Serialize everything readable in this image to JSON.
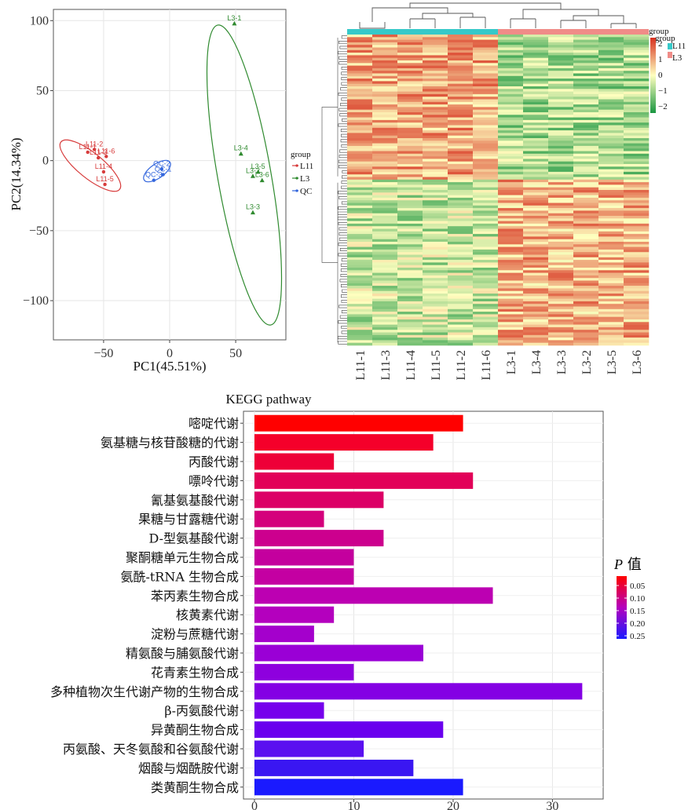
{
  "chart_data": [
    {
      "type": "scatter",
      "xlabel": "PC1(45.51%)",
      "ylabel": "PC2(14.34%)",
      "xlim": [
        -88,
        88
      ],
      "ylim": [
        -128,
        108
      ],
      "xticks": [
        -50,
        0,
        50
      ],
      "yticks": [
        100,
        50,
        0,
        -50,
        -100
      ],
      "grid": true,
      "legend": {
        "title": "group",
        "placement": "right",
        "entries": [
          "L11",
          "L3",
          "QC"
        ]
      },
      "colors": {
        "L11": "#d73b3b",
        "L3": "#2f8a2f",
        "QC": "#3366dd"
      },
      "series": [
        {
          "name": "L11",
          "points": [
            {
              "label": "L11-1",
              "x": -62,
              "y": 6
            },
            {
              "label": "L11-2",
              "x": -57,
              "y": 8
            },
            {
              "label": "L11-3",
              "x": -54,
              "y": 2
            },
            {
              "label": "L11-6",
              "x": -48,
              "y": 3
            },
            {
              "label": "L11-4",
              "x": -50,
              "y": -8
            },
            {
              "label": "L11-5",
              "x": -49,
              "y": -17
            }
          ]
        },
        {
          "name": "L3",
          "points": [
            {
              "label": "L3-1",
              "x": 49,
              "y": 98
            },
            {
              "label": "L3-4",
              "x": 54,
              "y": 5
            },
            {
              "label": "L3-5",
              "x": 67,
              "y": -8
            },
            {
              "label": "L3-2",
              "x": 63,
              "y": -11
            },
            {
              "label": "L3-6",
              "x": 70,
              "y": -14
            },
            {
              "label": "L3-3",
              "x": 63,
              "y": -37
            }
          ]
        },
        {
          "name": "QC",
          "points": [
            {
              "label": "QC-2",
              "x": -6,
              "y": -6
            },
            {
              "label": "QC-1",
              "x": -5,
              "y": -10
            },
            {
              "label": "QC-3",
              "x": -12,
              "y": -14
            }
          ]
        }
      ]
    },
    {
      "type": "heatmap",
      "columns": [
        "L11-1",
        "L11-3",
        "L11-4",
        "L11-5",
        "L11-2",
        "L11-6",
        "L3-1",
        "L3-4",
        "L3-3",
        "L3-2",
        "L3-5",
        "L3-6"
      ],
      "group_legend": {
        "title": "group",
        "entries": [
          "L11",
          "L3"
        ],
        "colors": [
          "#36c9c9",
          "#f08c88"
        ]
      },
      "scale_ticks": [
        2,
        1,
        0,
        -1,
        -2
      ],
      "scale_colors": [
        "#d7301f",
        "#ffffbf",
        "#1a9641"
      ]
    },
    {
      "type": "bar",
      "orientation": "horizontal",
      "title": "KEGG pathway",
      "xlim": [
        0,
        34
      ],
      "xticks": [
        0,
        10,
        20,
        30
      ],
      "grid": true,
      "legend": {
        "title_italic": "P",
        "title_rest": " 值",
        "placement": "right",
        "ticks": [
          "0.05",
          "0.10",
          "0.15",
          "0.20",
          "0.25"
        ]
      },
      "categories": [
        "嘧啶代谢",
        "氨基糖与核苷酸糖的代谢",
        "丙酸代谢",
        "嘌呤代谢",
        "氰基氨基酸代谢",
        "果糖与甘露糖代谢",
        "D-型氨基酸代谢",
        "聚酮糖单元生物合成",
        "氨酰-tRNA  生物合成",
        "苯丙素生物合成",
        "核黄素代谢",
        "淀粉与蔗糖代谢",
        "精氨酸与脯氨酸代谢",
        "花青素生物合成",
        "多种植物次生代谢产物的生物合成",
        "β-丙氨酸代谢",
        "异黄酮生物合成",
        "丙氨酸、天冬氨酸和谷氨酸代谢",
        "烟酸与烟酰胺代谢",
        "类黄酮生物合成"
      ],
      "values": [
        21,
        18,
        8,
        22,
        13,
        7,
        13,
        10,
        10,
        24,
        8,
        6,
        17,
        10,
        33,
        7,
        19,
        11,
        16,
        21
      ],
      "colors": [
        "#ff0000",
        "#f5002a",
        "#ee0038",
        "#e20058",
        "#dc0066",
        "#d4007c",
        "#cc008e",
        "#c4009e",
        "#c400a2",
        "#bc00b2",
        "#b400be",
        "#a400cc",
        "#9a00d6",
        "#8e00de",
        "#8400e4",
        "#7600ec",
        "#6a00ee",
        "#5a10f0",
        "#3a16f2",
        "#1a1aff"
      ]
    }
  ]
}
